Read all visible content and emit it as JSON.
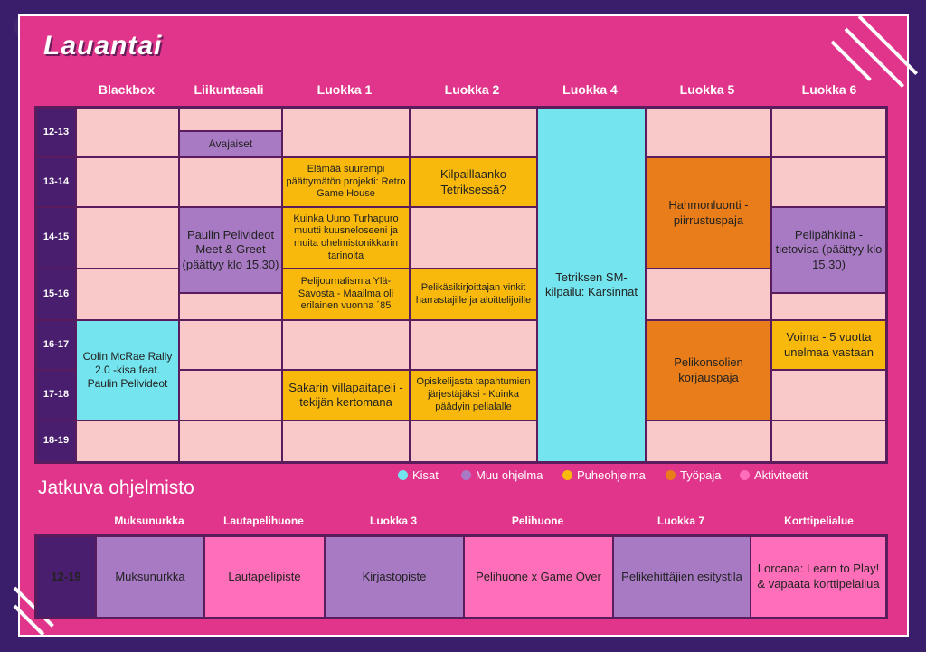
{
  "title": "Lauantai",
  "columns": [
    "Blackbox",
    "Liikuntasali",
    "Luokka 1",
    "Luokka 2",
    "Luokka 4",
    "Luokka 5",
    "Luokka 6"
  ],
  "times": [
    "12-13",
    "13-14",
    "14-15",
    "15-16",
    "16-17",
    "17-18",
    "18-19"
  ],
  "events": {
    "avajaiset": "Avajaiset",
    "paulin": "Paulin Pelivideot Meet & Greet (päättyy klo 15.30)",
    "colin": "Colin McRae Rally 2.0 -kisa feat. Paulin Pelivideot",
    "elamaa": "Elämää suurempi päättymätön projekti: Retro Game House",
    "kuinka": "Kuinka Uuno Turhapuro muutti kuusneloseeni ja muita ohelmistonikkarin tarinoita",
    "pelijournalismia": "Pelijournalismia Ylä-Savosta - Maailma oli erilainen vuonna ´85",
    "sakarin": "Sakarin villapaitapeli -tekijän kertomana",
    "kilpaillaanko": "Kilpaillaanko Tetriksessä?",
    "pelikasikirjoittajan": "Pelikäsikirjoittajan vinkit harrastajille ja aloittelijoille",
    "opiskelijasta": "Opiskelijasta tapahtumien järjestäjäksi - Kuinka päädyin pelialalle",
    "tetriksen": "Tetriksen SM-kilpailu: Karsinnat",
    "hahmonluonti": "Hahmonluonti -piirrustuspaja",
    "pelikonsolien": "Pelikonsolien korjauspaja",
    "pelipahkina": "Pelipähkinä -tietovisa (päättyy klo 15.30)",
    "voima": "Voima - 5 vuotta unelmaa vastaan"
  },
  "legend": [
    {
      "label": "Kisat",
      "color": "#74e4ee"
    },
    {
      "label": "Muu ohjelma",
      "color": "#a87ac4"
    },
    {
      "label": "Puheohjelma",
      "color": "#f8b90c"
    },
    {
      "label": "Työpaja",
      "color": "#e87d1a"
    },
    {
      "label": "Aktiviteetit",
      "color": "#ff6eb8"
    }
  ],
  "continuous": {
    "title": "Jatkuva ohjelmisto",
    "time": "12-19",
    "columns": [
      "Muksunurkka",
      "Lautapelihuone",
      "Luokka 3",
      "Pelihuone",
      "Luokka 7",
      "Korttipelialue"
    ],
    "items": [
      "Muksunurkka",
      "Lautapelipiste",
      "Kirjastopiste",
      "Pelihuone x Game Over",
      "Pelikehittäjien esitystila",
      "Lorcana: Learn to Play! & vapaata korttipelailua"
    ]
  }
}
